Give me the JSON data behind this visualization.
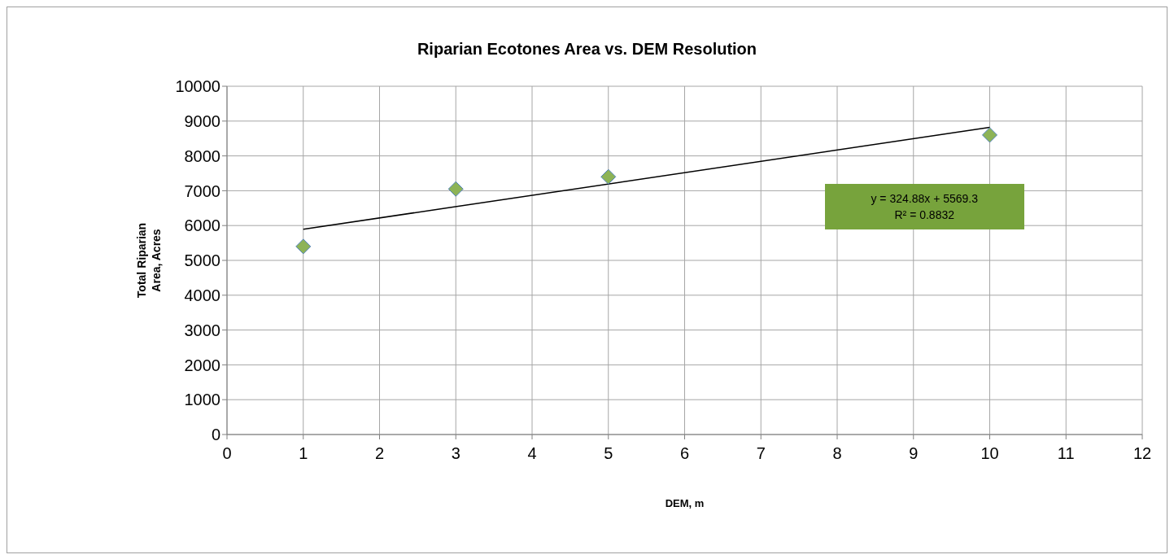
{
  "chart_data": {
    "type": "scatter",
    "title": "Riparian Ecotones Area vs. DEM Resolution",
    "xlabel": "DEM, m",
    "ylabel": "Total Riparian Area, Acres",
    "annotations": [
      "y = 324.88x + 5569.3",
      "R² = 0.8832"
    ],
    "xlim": [
      0,
      12
    ],
    "xticks": [
      0,
      1,
      2,
      3,
      4,
      5,
      6,
      7,
      8,
      9,
      10,
      11,
      12
    ],
    "ylim": [
      0,
      10000
    ],
    "yticks": [
      0,
      1000,
      2000,
      3000,
      4000,
      5000,
      6000,
      7000,
      8000,
      9000,
      10000
    ],
    "grid": true,
    "marker": "diamond",
    "series": [
      {
        "color": "#8db356",
        "x": [
          1,
          3,
          5,
          10
        ],
        "values": [
          5400,
          7050,
          7400,
          8600
        ]
      },
      {
        "type": "line",
        "color": "#000000",
        "x": [
          1,
          10
        ],
        "values": [
          5894,
          8818
        ],
        "marker": "none",
        "line_style": "solid"
      }
    ]
  }
}
